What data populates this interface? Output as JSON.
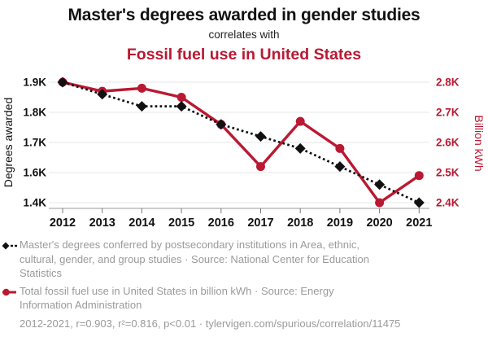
{
  "header": {
    "title": "Master's degrees awarded in gender studies",
    "connector": "correlates with",
    "red_title": "Fossil fuel use in United States"
  },
  "colors": {
    "red": "#b91932",
    "black": "#111111",
    "gray": "#9a9a9a",
    "gridline": "#e7e7e7",
    "axis_line": "#9a9a9a",
    "tick_mark": "#777777"
  },
  "chart_data": {
    "type": "line",
    "x": [
      2012,
      2013,
      2014,
      2015,
      2016,
      2017,
      2018,
      2019,
      2020,
      2021
    ],
    "series": [
      {
        "name": "Master's degrees conferred by postsecondary institutions in Area, ethnic, cultural, gender, and group studies",
        "axis": "left",
        "marker": "diamond",
        "line_style": "dotted",
        "values": [
          1900,
          1860,
          1820,
          1820,
          1760,
          1720,
          1680,
          1620,
          1520,
          1400
        ]
      },
      {
        "name": "Total fossil fuel use in United States in billion kWh",
        "axis": "right",
        "marker": "circle",
        "line_style": "solid",
        "values": [
          2800,
          2770,
          2780,
          2750,
          2660,
          2520,
          2670,
          2580,
          2400,
          2490
        ]
      }
    ],
    "left_axis": {
      "label": "Degrees awarded",
      "ticks": [
        "1.9K",
        "1.8K",
        "1.7K",
        "1.6K",
        "1.4K"
      ],
      "tick_values": [
        1900,
        1800,
        1700,
        1600,
        1400
      ]
    },
    "right_axis": {
      "label": "Billion kWh",
      "ticks": [
        "2.8K",
        "2.7K",
        "2.6K",
        "2.5K",
        "2.4K"
      ],
      "tick_values": [
        2800,
        2700,
        2600,
        2500,
        2400
      ]
    },
    "grid": true,
    "legend_position": "bottom"
  },
  "legend": {
    "items": [
      {
        "marker": "black-diamond-dotted-line",
        "lines": [
          "Master's degrees conferred by postsecondary institutions in Area, ethnic,",
          "cultural, gender, and group studies · Source: National Center for Education",
          "Statistics"
        ]
      },
      {
        "marker": "red-circle-solid-line",
        "lines": [
          "Total fossil fuel use in United States in billion kWh · Source: Energy",
          "Information Administration"
        ]
      }
    ]
  },
  "footer": {
    "stats": "2012-2021, r=0.903, r²=0.816, p<0.01 · tylervigen.com/spurious/correlation/11475"
  }
}
